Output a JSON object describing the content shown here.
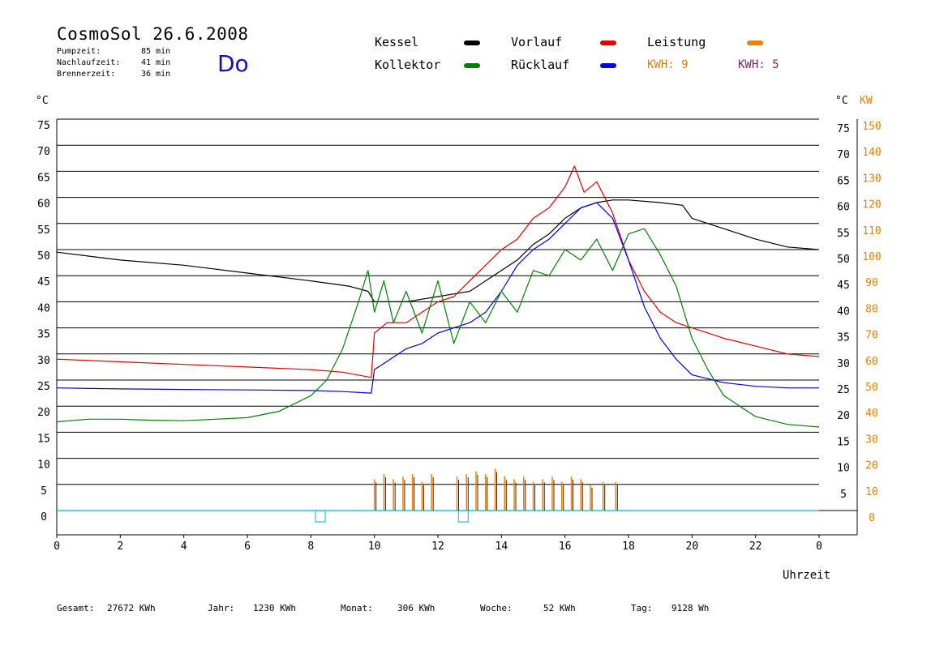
{
  "header": {
    "title": "CosmoSol 26.6.2008",
    "weekday": "Do",
    "stats": [
      {
        "label": "Pumpzeit:",
        "value": "85 min"
      },
      {
        "label": "Nachlaufzeit:",
        "value": "41 min"
      },
      {
        "label": "Brennerzeit:",
        "value": "36 min"
      }
    ]
  },
  "legend": {
    "kessel": {
      "label": "Kessel",
      "color": "#000000"
    },
    "vorlauf": {
      "label": "Vorlauf",
      "color": "#e00000"
    },
    "leistung": {
      "label": "Leistung",
      "color": "#f08000"
    },
    "kollektor": {
      "label": "Kollektor",
      "color": "#008000"
    },
    "ruecklauf": {
      "label": "Rücklauf",
      "color": "#0000e0"
    },
    "kwh1": "KWH: 9",
    "kwh2": "KWH: 5",
    "kwh1_color": "#e08000",
    "kwh2_color": "#802080"
  },
  "footer": {
    "gesamt_label": "Gesamt:",
    "gesamt_value": "27672 KWh",
    "jahr_label": "Jahr:",
    "jahr_value": "1230 KWh",
    "monat_label": "Monat:",
    "monat_value": "306 KWh",
    "woche_label": "Woche:",
    "woche_value": "52 KWh",
    "tag_label": "Tag:",
    "tag_value": "9128 Wh"
  },
  "chart_data": {
    "type": "line",
    "left_unit": "°C",
    "right_unit_c": "°C",
    "right_unit_kw": "KW",
    "xlabel": "Uhrzeit",
    "xlim": [
      0,
      24
    ],
    "ylim": [
      0,
      75
    ],
    "y2lim": [
      0,
      150
    ],
    "x_ticks": [
      "0",
      "2",
      "4",
      "6",
      "8",
      "10",
      "12",
      "14",
      "16",
      "18",
      "20",
      "22",
      "0"
    ],
    "y_ticks": [
      "0",
      "5",
      "10",
      "15",
      "20",
      "25",
      "30",
      "35",
      "40",
      "45",
      "50",
      "55",
      "60",
      "65",
      "70",
      "75"
    ],
    "y2_ticks": [
      "",
      "10",
      "20",
      "30",
      "40",
      "50",
      "60",
      "70",
      "80",
      "90",
      "100",
      "110",
      "120",
      "130",
      "140",
      "150"
    ],
    "grid": true,
    "series": [
      {
        "name": "Kessel",
        "color": "#000000",
        "x": [
          0,
          2,
          4,
          6,
          8,
          9.2,
          9.8,
          10.0,
          10.5,
          11,
          11.5,
          12,
          12.5,
          13,
          13.5,
          14,
          14.5,
          15,
          15.5,
          16,
          16.5,
          17,
          17.5,
          18,
          19,
          19.7,
          20,
          21,
          22,
          23,
          24
        ],
        "y": [
          49.5,
          48,
          47,
          45.5,
          44,
          43,
          42,
          40,
          40,
          40,
          40.5,
          41,
          41.5,
          42,
          44,
          46,
          48,
          51,
          53,
          56,
          58,
          59,
          59.5,
          59.5,
          59,
          58.5,
          56,
          54,
          52,
          50.5,
          50
        ]
      },
      {
        "name": "Vorlauf",
        "color": "#e00000",
        "x": [
          0,
          2,
          4,
          6,
          8,
          9,
          9.9,
          10.0,
          10.4,
          11,
          11.5,
          12,
          12.5,
          13,
          13.5,
          14,
          14.5,
          15,
          15.5,
          16,
          16.3,
          16.6,
          17,
          17.5,
          18,
          18.5,
          19,
          19.5,
          20,
          21,
          22,
          23,
          24
        ],
        "y": [
          29,
          28.5,
          28,
          27.5,
          27,
          26.5,
          25.5,
          34,
          36,
          36,
          38,
          40,
          41,
          44,
          47,
          50,
          52,
          56,
          58,
          62,
          66,
          61,
          63,
          57,
          48,
          42,
          38,
          36,
          35,
          33,
          31.5,
          30,
          29.5
        ]
      },
      {
        "name": "Rücklauf",
        "color": "#0000e0",
        "x": [
          0,
          2,
          4,
          6,
          8,
          9,
          9.9,
          10.0,
          10.5,
          11,
          11.5,
          12,
          12.5,
          13,
          13.5,
          14,
          14.5,
          15,
          15.5,
          16,
          16.5,
          17,
          17.5,
          18,
          18.5,
          19,
          19.5,
          20,
          21,
          22,
          23,
          24
        ],
        "y": [
          23.5,
          23.3,
          23.2,
          23.1,
          23,
          22.8,
          22.5,
          27,
          29,
          31,
          32,
          34,
          35,
          36,
          38,
          42,
          47,
          50,
          52,
          55,
          58,
          59,
          56,
          48,
          39,
          33,
          29,
          26,
          24.5,
          23.8,
          23.5,
          23.5
        ]
      },
      {
        "name": "Kollektor",
        "color": "#008000",
        "x": [
          0,
          1,
          2,
          3,
          4,
          5,
          6,
          7,
          8,
          8.5,
          9,
          9.5,
          9.8,
          10.0,
          10.3,
          10.6,
          11,
          11.5,
          12,
          12.5,
          13,
          13.5,
          14,
          14.5,
          15,
          15.5,
          16,
          16.5,
          17,
          17.5,
          18,
          18.5,
          19,
          19.5,
          20,
          20.5,
          21,
          22,
          23,
          24
        ],
        "y": [
          17,
          17.5,
          17.5,
          17.3,
          17.2,
          17.5,
          17.8,
          19,
          22,
          25,
          31,
          40,
          46,
          38,
          44,
          36,
          42,
          34,
          44,
          32,
          40,
          36,
          42,
          38,
          46,
          45,
          50,
          48,
          52,
          46,
          53,
          54,
          49,
          43,
          33,
          27,
          22,
          18,
          16.5,
          16
        ]
      }
    ],
    "leistung_bars_x": [
      10.0,
      10.3,
      10.6,
      10.9,
      11.2,
      11.5,
      11.8,
      12.6,
      12.9,
      13.2,
      13.5,
      13.8,
      14.1,
      14.4,
      14.7,
      15.0,
      15.3,
      15.6,
      15.9,
      16.2,
      16.5,
      16.8,
      17.2,
      17.6
    ],
    "leistung_bars_kw": [
      12,
      14,
      12,
      13,
      14,
      11,
      14,
      13,
      14,
      15,
      14,
      16,
      13,
      12,
      13,
      11,
      12,
      13,
      11,
      13,
      12,
      10,
      11,
      11
    ],
    "markers_x": [
      8.3,
      12.8
    ]
  }
}
